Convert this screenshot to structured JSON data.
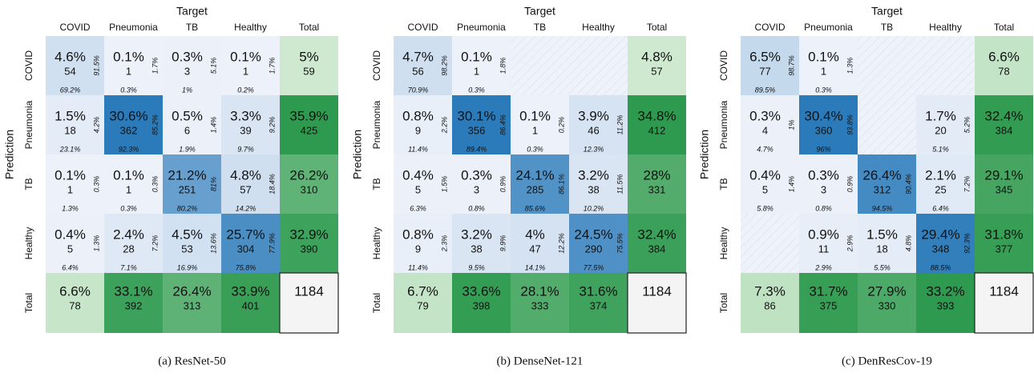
{
  "chart_data": [
    {
      "type": "heatmap",
      "caption": "(a) ResNet-50",
      "xlabel": "Target",
      "ylabel": "Prediction",
      "categories": [
        "COVID",
        "Pneumonia",
        "TB",
        "Healthy"
      ],
      "total_label": "Total",
      "cell_color": "#2b7bba",
      "total_color": "#2e9a4f",
      "grand_total_color": "#f4f4f4",
      "cells": [
        [
          {
            "percent": "4.6%",
            "count": 54,
            "row_percent": "91.5%",
            "col_percent": "69.2%"
          },
          {
            "percent": "0.1%",
            "count": 1,
            "row_percent": "1.7%",
            "col_percent": "0.3%"
          },
          {
            "percent": "0.3%",
            "count": 3,
            "row_percent": "5.1%",
            "col_percent": "1%"
          },
          {
            "percent": "0.1%",
            "count": 1,
            "row_percent": "1.7%",
            "col_percent": "0.2%"
          }
        ],
        [
          {
            "percent": "1.5%",
            "count": 18,
            "row_percent": "4.2%",
            "col_percent": "23.1%"
          },
          {
            "percent": "30.6%",
            "count": 362,
            "row_percent": "85.2%",
            "col_percent": "92.3%"
          },
          {
            "percent": "0.5%",
            "count": 6,
            "row_percent": "1.4%",
            "col_percent": "1.9%"
          },
          {
            "percent": "3.3%",
            "count": 39,
            "row_percent": "9.2%",
            "col_percent": "9.7%"
          }
        ],
        [
          {
            "percent": "0.1%",
            "count": 1,
            "row_percent": "0.3%",
            "col_percent": "1.3%"
          },
          {
            "percent": "0.1%",
            "count": 1,
            "row_percent": "0.3%",
            "col_percent": "0.3%"
          },
          {
            "percent": "21.2%",
            "count": 251,
            "row_percent": "81%",
            "col_percent": "80.2%"
          },
          {
            "percent": "4.8%",
            "count": 57,
            "row_percent": "18.4%",
            "col_percent": "14.2%"
          }
        ],
        [
          {
            "percent": "0.4%",
            "count": 5,
            "row_percent": "1.3%",
            "col_percent": "6.4%"
          },
          {
            "percent": "2.4%",
            "count": 28,
            "row_percent": "7.2%",
            "col_percent": "7.1%"
          },
          {
            "percent": "4.5%",
            "count": 53,
            "row_percent": "13.6%",
            "col_percent": "16.9%"
          },
          {
            "percent": "25.7%",
            "count": 304,
            "row_percent": "77.9%",
            "col_percent": "75.8%"
          }
        ]
      ],
      "row_totals": [
        {
          "percent": "5%",
          "count": 59
        },
        {
          "percent": "35.9%",
          "count": 425
        },
        {
          "percent": "26.2%",
          "count": 310
        },
        {
          "percent": "32.9%",
          "count": 390
        }
      ],
      "col_totals": [
        {
          "percent": "6.6%",
          "count": 78
        },
        {
          "percent": "33.1%",
          "count": 392
        },
        {
          "percent": "26.4%",
          "count": 313
        },
        {
          "percent": "33.9%",
          "count": 401
        }
      ],
      "grand_total": 1184
    },
    {
      "type": "heatmap",
      "caption": "(b) DenseNet-121",
      "xlabel": "Target",
      "ylabel": "Prediction",
      "categories": [
        "COVID",
        "Pneumonia",
        "TB",
        "Healthy"
      ],
      "total_label": "Total",
      "cell_color": "#2b7bba",
      "total_color": "#2e9a4f",
      "grand_total_color": "#f4f4f4",
      "cells": [
        [
          {
            "percent": "4.7%",
            "count": 56,
            "row_percent": "98.2%",
            "col_percent": "70.9%"
          },
          {
            "percent": "0.1%",
            "count": 1,
            "row_percent": "1.8%",
            "col_percent": "0.3%"
          },
          null,
          null
        ],
        [
          {
            "percent": "0.8%",
            "count": 9,
            "row_percent": "2.2%",
            "col_percent": "11.4%"
          },
          {
            "percent": "30.1%",
            "count": 356,
            "row_percent": "86.4%",
            "col_percent": "89.4%"
          },
          {
            "percent": "0.1%",
            "count": 1,
            "row_percent": "0.2%",
            "col_percent": "0.3%"
          },
          {
            "percent": "3.9%",
            "count": 46,
            "row_percent": "11.2%",
            "col_percent": "12.3%"
          }
        ],
        [
          {
            "percent": "0.4%",
            "count": 5,
            "row_percent": "1.5%",
            "col_percent": "6.3%"
          },
          {
            "percent": "0.3%",
            "count": 3,
            "row_percent": "0.9%",
            "col_percent": "0.8%"
          },
          {
            "percent": "24.1%",
            "count": 285,
            "row_percent": "86.1%",
            "col_percent": "85.6%"
          },
          {
            "percent": "3.2%",
            "count": 38,
            "row_percent": "11.5%",
            "col_percent": "10.2%"
          }
        ],
        [
          {
            "percent": "0.8%",
            "count": 9,
            "row_percent": "2.3%",
            "col_percent": "11.4%"
          },
          {
            "percent": "3.2%",
            "count": 38,
            "row_percent": "9.9%",
            "col_percent": "9.5%"
          },
          {
            "percent": "4%",
            "count": 47,
            "row_percent": "12.2%",
            "col_percent": "14.1%"
          },
          {
            "percent": "24.5%",
            "count": 290,
            "row_percent": "75.5%",
            "col_percent": "77.5%"
          }
        ]
      ],
      "row_totals": [
        {
          "percent": "4.8%",
          "count": 57
        },
        {
          "percent": "34.8%",
          "count": 412
        },
        {
          "percent": "28%",
          "count": 331
        },
        {
          "percent": "32.4%",
          "count": 384
        }
      ],
      "col_totals": [
        {
          "percent": "6.7%",
          "count": 79
        },
        {
          "percent": "33.6%",
          "count": 398
        },
        {
          "percent": "28.1%",
          "count": 333
        },
        {
          "percent": "31.6%",
          "count": 374
        }
      ],
      "grand_total": 1184
    },
    {
      "type": "heatmap",
      "caption": "(c) DenResCov-19",
      "xlabel": "Target",
      "ylabel": "Prediction",
      "categories": [
        "COVID",
        "Pneumonia",
        "TB",
        "Healthy"
      ],
      "total_label": "Total",
      "cell_color": "#2b7bba",
      "total_color": "#2e9a4f",
      "grand_total_color": "#f4f4f4",
      "cells": [
        [
          {
            "percent": "6.5%",
            "count": 77,
            "row_percent": "98.7%",
            "col_percent": "89.5%"
          },
          {
            "percent": "0.1%",
            "count": 1,
            "row_percent": "1.3%",
            "col_percent": "0.3%"
          },
          null,
          null
        ],
        [
          {
            "percent": "0.3%",
            "count": 4,
            "row_percent": "1%",
            "col_percent": "4.7%"
          },
          {
            "percent": "30.4%",
            "count": 360,
            "row_percent": "93.8%",
            "col_percent": "96%"
          },
          null,
          {
            "percent": "1.7%",
            "count": 20,
            "row_percent": "5.2%",
            "col_percent": "5.1%"
          }
        ],
        [
          {
            "percent": "0.4%",
            "count": 5,
            "row_percent": "1.4%",
            "col_percent": "5.8%"
          },
          {
            "percent": "0.3%",
            "count": 3,
            "row_percent": "0.9%",
            "col_percent": "0.8%"
          },
          {
            "percent": "26.4%",
            "count": 312,
            "row_percent": "90.4%",
            "col_percent": "94.5%"
          },
          {
            "percent": "2.1%",
            "count": 25,
            "row_percent": "7.2%",
            "col_percent": "6.4%"
          }
        ],
        [
          null,
          {
            "percent": "0.9%",
            "count": 11,
            "row_percent": "2.9%",
            "col_percent": "2.9%"
          },
          {
            "percent": "1.5%",
            "count": 18,
            "row_percent": "4.8%",
            "col_percent": "5.5%"
          },
          {
            "percent": "29.4%",
            "count": 348,
            "row_percent": "92.3%",
            "col_percent": "88.5%"
          }
        ]
      ],
      "row_totals": [
        {
          "percent": "6.6%",
          "count": 78
        },
        {
          "percent": "32.4%",
          "count": 384
        },
        {
          "percent": "29.1%",
          "count": 345
        },
        {
          "percent": "31.8%",
          "count": 377
        }
      ],
      "col_totals": [
        {
          "percent": "7.3%",
          "count": 86
        },
        {
          "percent": "31.7%",
          "count": 375
        },
        {
          "percent": "27.9%",
          "count": 330
        },
        {
          "percent": "33.2%",
          "count": 393
        }
      ],
      "grand_total": 1184
    }
  ]
}
